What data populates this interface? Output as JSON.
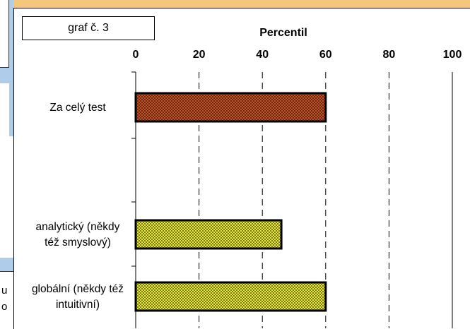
{
  "side_fragments": [
    "u",
    "o"
  ],
  "graf_label": "graf č. 3",
  "colors": {
    "background": "#f4c77c",
    "side_strip": "#aecdea",
    "bar_series_1_fill": "#c0532a",
    "bar_series_1_pattern": "#6b2a10",
    "bar_series_2_fill": "#e8ea3a",
    "bar_series_2_pattern": "#7a7a1a"
  },
  "chart_data": {
    "type": "bar",
    "orientation": "horizontal",
    "title": "Percentil",
    "xlim": [
      0,
      100
    ],
    "xticks": [
      0,
      20,
      40,
      60,
      80,
      100
    ],
    "x_axis_position": "top",
    "grid": "vertical dashed",
    "categories": [
      {
        "label": [
          "Za celý test"
        ],
        "value": 60,
        "style": "orange"
      },
      {
        "label": [
          "analytický (někdy",
          "též smyslový)"
        ],
        "value": 46,
        "style": "yellow"
      },
      {
        "label": [
          "globální (někdy též",
          "intuitivní)"
        ],
        "value": 60,
        "style": "yellow"
      }
    ]
  }
}
